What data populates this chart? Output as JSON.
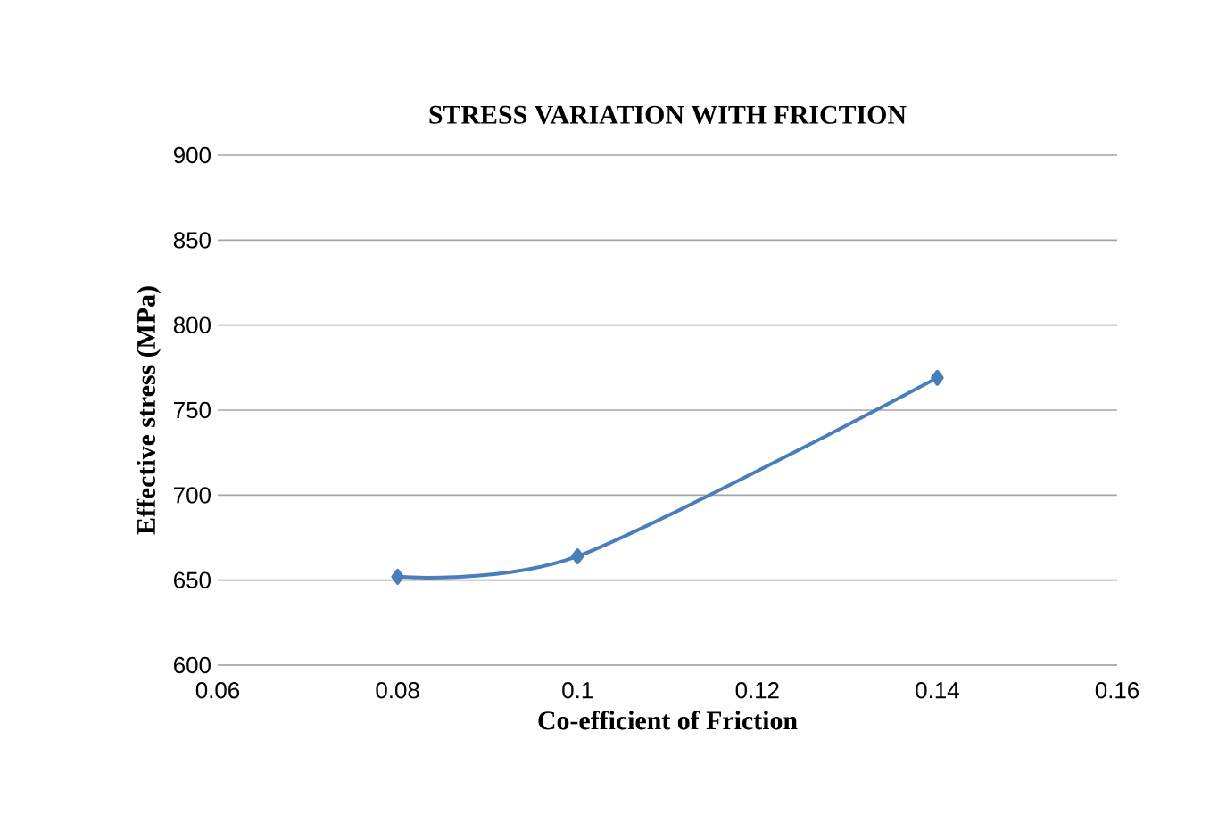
{
  "chart_data": {
    "type": "line",
    "title": "STRESS VARIATION  WITH  FRICTION",
    "xlabel": "Co-efficient  of Friction",
    "ylabel": "Effective  stress (MPa)",
    "x": [
      0.08,
      0.1,
      0.14
    ],
    "series": [
      {
        "color": "#4a7ebb",
        "values": [
          652,
          664,
          769
        ]
      }
    ],
    "xlim": [
      0.06,
      0.16
    ],
    "xticks": [
      0.06,
      0.08,
      0.1,
      0.12,
      0.14,
      0.16
    ],
    "ylim": [
      600,
      900
    ],
    "yticks": [
      600,
      650,
      700,
      750,
      800,
      850,
      900
    ],
    "grid": "y",
    "marker": "diamond",
    "line_style": "solid"
  }
}
